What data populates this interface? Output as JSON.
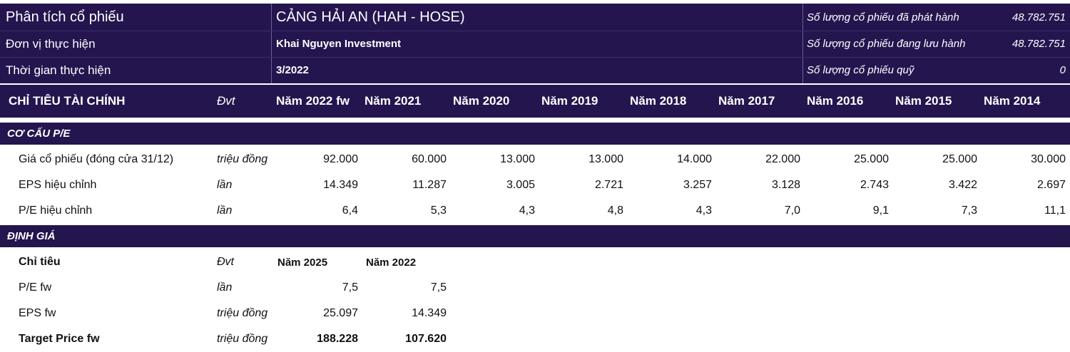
{
  "header": {
    "title_label": "Phân tích cổ phiếu",
    "company": "CẢNG HẢI AN (HAH - HOSE)",
    "unit_label": "Đơn vị thực hiện",
    "unit_value": "Khai Nguyen Investment",
    "time_label": "Thời gian thực hiện",
    "time_value": "3/2022",
    "stats": [
      {
        "label": "Số lượng cổ phiếu đã phát hành",
        "value": "48.782.751"
      },
      {
        "label": "Số lượng cổ phiếu đang lưu hành",
        "value": "48.782.751"
      },
      {
        "label": "Số lượng cổ phiếu quỹ",
        "value": "0"
      }
    ]
  },
  "table_header": {
    "label": "CHỈ TIÊU TÀI CHÍNH",
    "unit": "Đvt",
    "years": [
      "Năm 2022 fw",
      "Năm 2021",
      "Năm 2020",
      "Năm 2019",
      "Năm 2018",
      "Năm 2017",
      "Năm 2016",
      "Năm 2015",
      "Năm 2014"
    ]
  },
  "section_pe": {
    "title": "CƠ CẤU P/E",
    "rows": [
      {
        "label": "Giá cổ phiếu (đóng cửa 31/12)",
        "unit": "triệu đồng",
        "values": [
          "92.000",
          "60.000",
          "13.000",
          "13.000",
          "14.000",
          "22.000",
          "25.000",
          "25.000",
          "30.000"
        ]
      },
      {
        "label": "EPS hiệu chỉnh",
        "unit": "lần",
        "values": [
          "14.349",
          "11.287",
          "3.005",
          "2.721",
          "3.257",
          "3.128",
          "2.743",
          "3.422",
          "2.697"
        ]
      },
      {
        "label": "P/E hiệu chỉnh",
        "unit": "lần",
        "values": [
          "6,4",
          "5,3",
          "4,3",
          "4,8",
          "4,3",
          "7,0",
          "9,1",
          "7,3",
          "11,1"
        ]
      }
    ]
  },
  "section_valuation": {
    "title": "ĐỊNH GIÁ",
    "header": {
      "label": "Chỉ tiêu",
      "unit": "Đvt",
      "years": [
        "Năm 2025",
        "Năm 2022"
      ]
    },
    "rows": [
      {
        "label": "P/E fw",
        "unit": "lần",
        "values": [
          "7,5",
          "7,5"
        ]
      },
      {
        "label": "EPS fw",
        "unit": "triệu đồng",
        "values": [
          "25.097",
          "14.349"
        ]
      }
    ],
    "target": {
      "label": "Target Price fw",
      "unit": "triệu đồng",
      "values": [
        "188.228",
        "107.620"
      ]
    }
  }
}
